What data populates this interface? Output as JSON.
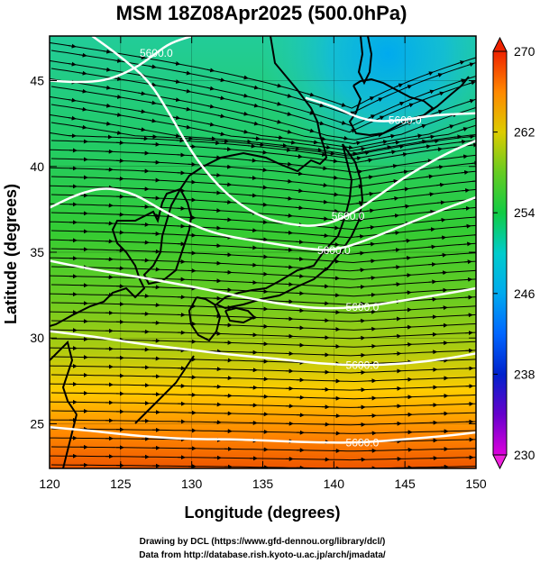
{
  "title": "MSM 18Z08Apr2025 (500.0hPa)",
  "xlabel": "Longitude (degrees)",
  "ylabel": "Latitude  (degrees)",
  "x_ticks": [
    "120",
    "125",
    "130",
    "135",
    "140",
    "145",
    "150"
  ],
  "y_ticks": [
    "25",
    "30",
    "35",
    "40",
    "45"
  ],
  "colorbar_ticks": [
    "230",
    "238",
    "246",
    "254",
    "262",
    "270"
  ],
  "contour_label": "5600.0",
  "credits": [
    "Drawing by DCL (https://www.gfd-dennou.org/library/dcl/)",
    "Data from http://database.rish.kyoto-u.ac.jp/arch/jmadata/"
  ],
  "colors": {
    "cold_min": "#cc00cc",
    "cool": "#00ccee",
    "mid": "#22cc33",
    "warm": "#ffcc00",
    "hot_max": "#ee3300",
    "contour": "#ffffff",
    "coast": "#000000"
  },
  "chart_data": {
    "type": "heatmap",
    "title": "MSM 18Z08Apr2025 (500.0hPa)",
    "xlabel": "Longitude (degrees)",
    "ylabel": "Latitude  (degrees)",
    "xlim": [
      120,
      150
    ],
    "ylim": [
      22.4,
      47.6
    ],
    "colorbar": {
      "min": 230,
      "max": 270,
      "ticks": [
        230,
        238,
        246,
        254,
        262,
        270
      ]
    },
    "contours": [
      {
        "label": "5600.0",
        "lon": [
          120,
          123,
          126,
          130,
          133,
          136,
          139,
          142,
          145,
          148,
          150
        ],
        "lat": [
          24.8,
          24.6,
          24.3,
          24.1,
          24.1,
          24.0,
          23.9,
          23.9,
          24.1,
          24.3,
          24.5
        ]
      },
      {
        "label": "5600.0",
        "lon": [
          120,
          123,
          126,
          130,
          133,
          136,
          139,
          142,
          145,
          148,
          150
        ],
        "lat": [
          30.4,
          30.1,
          29.7,
          29.3,
          29.0,
          28.8,
          28.5,
          28.4,
          28.5,
          28.8,
          29.1
        ]
      },
      {
        "label": "5600.0",
        "lon": [
          120,
          123,
          126,
          130,
          133,
          136,
          139,
          142,
          145,
          148,
          150
        ],
        "lat": [
          34.5,
          34.0,
          33.6,
          33.0,
          32.5,
          32.0,
          31.7,
          31.8,
          32.2,
          32.6,
          32.9
        ]
      },
      {
        "label": "5600.0",
        "lon": [
          120,
          122,
          124,
          126,
          128,
          130,
          132,
          135,
          138,
          140,
          142,
          145,
          148,
          150
        ],
        "lat": [
          37.6,
          38.4,
          38.8,
          38.4,
          37.4,
          36.6,
          36.0,
          35.6,
          35.2,
          35.1,
          35.6,
          36.6,
          37.6,
          38.2
        ]
      },
      {
        "label": "5600.0",
        "lon": [
          123,
          125,
          127,
          128.5,
          130,
          131.5,
          133,
          135,
          137,
          139,
          141,
          143,
          145,
          148,
          150
        ],
        "lat": [
          47.6,
          46.4,
          45.0,
          43.0,
          40.8,
          39.2,
          38.0,
          37.0,
          36.6,
          36.5,
          37.1,
          38.2,
          39.4,
          40.8,
          41.5
        ]
      },
      {
        "label": "5600.0",
        "lon": [
          120,
          122,
          124,
          126,
          127.5,
          128.5,
          130
        ],
        "lat": [
          45.0,
          44.9,
          45.0,
          45.7,
          46.6,
          47.2,
          47.6
        ]
      },
      {
        "label": "5600.0",
        "lon": [
          138,
          140,
          141.5,
          143,
          145,
          147,
          150
        ],
        "lat": [
          44.0,
          43.5,
          42.9,
          42.6,
          42.7,
          43.0,
          43.1
        ]
      }
    ]
  }
}
